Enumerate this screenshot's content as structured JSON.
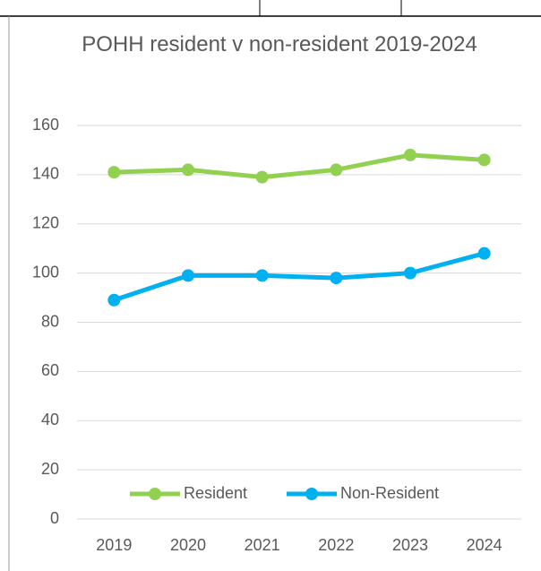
{
  "chart_data": {
    "type": "line",
    "title": "POHH resident v non-resident 2019-2024",
    "categories": [
      "2019",
      "2020",
      "2021",
      "2022",
      "2023",
      "2024"
    ],
    "series": [
      {
        "name": "Resident",
        "color": "#92d050",
        "values": [
          141,
          142,
          139,
          142,
          148,
          146
        ]
      },
      {
        "name": "Non-Resident",
        "color": "#00b0f0",
        "values": [
          89,
          99,
          99,
          98,
          100,
          108
        ]
      }
    ],
    "ylim": [
      0,
      160
    ],
    "yticks": [
      0,
      20,
      40,
      60,
      80,
      100,
      120,
      140,
      160
    ],
    "grid": true,
    "legend": "bottom"
  }
}
